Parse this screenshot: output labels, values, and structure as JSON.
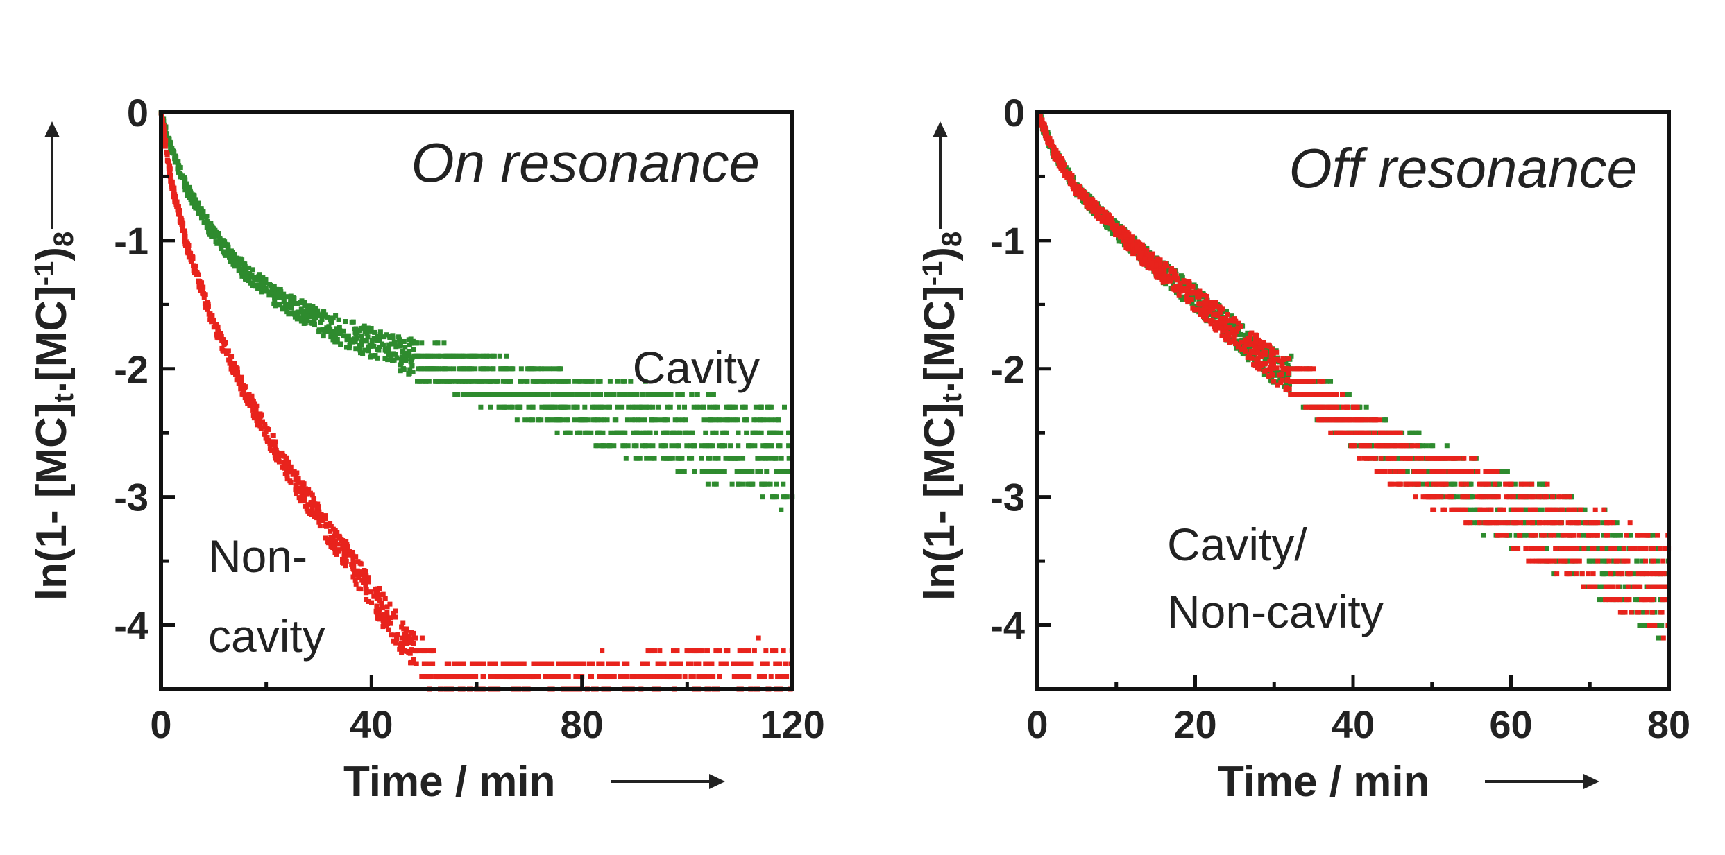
{
  "colors": {
    "cavity": "#2e8b2e",
    "noncavity": "#e8231c",
    "axes": "#111111"
  },
  "chart_data": [
    {
      "type": "scatter",
      "title": "On resonance",
      "xlabel": "Time / min",
      "ylabel_parts": {
        "a": "ln(1- [MC]",
        "sub1": "t",
        "b": ".[MC]",
        "sup1": "-1",
        "b2": ")",
        "sub2": "8"
      },
      "xlim": [
        0,
        120
      ],
      "ylim": [
        -4.5,
        0
      ],
      "xticks": [
        "0",
        "40",
        "80",
        "120"
      ],
      "yticks": [
        "0",
        "-1",
        "-2",
        "-3",
        "-4"
      ],
      "annotations": [
        {
          "id": "cavity",
          "lines": [
            "Cavity"
          ]
        },
        {
          "id": "noncavity",
          "lines": [
            "Non-",
            "cavity"
          ]
        }
      ],
      "series": [
        {
          "color_key": "cavity",
          "curve": [
            [
              0,
              0
            ],
            [
              2,
              -0.3
            ],
            [
              5,
              -0.6
            ],
            [
              10,
              -0.95
            ],
            [
              15,
              -1.2
            ],
            [
              20,
              -1.38
            ],
            [
              25,
              -1.52
            ],
            [
              30,
              -1.63
            ],
            [
              35,
              -1.72
            ],
            [
              40,
              -1.8
            ],
            [
              50,
              -1.95
            ],
            [
              60,
              -2.07
            ],
            [
              70,
              -2.18
            ],
            [
              80,
              -2.3
            ],
            [
              90,
              -2.4
            ],
            [
              100,
              -2.5
            ],
            [
              110,
              -2.6
            ],
            [
              120,
              -2.7
            ]
          ]
        },
        {
          "color_key": "noncavity",
          "curve": [
            [
              0,
              0
            ],
            [
              2,
              -0.55
            ],
            [
              5,
              -1.05
            ],
            [
              10,
              -1.65
            ],
            [
              15,
              -2.1
            ],
            [
              20,
              -2.5
            ],
            [
              25,
              -2.85
            ],
            [
              30,
              -3.15
            ],
            [
              35,
              -3.45
            ],
            [
              40,
              -3.75
            ],
            [
              45,
              -4.05
            ],
            [
              50,
              -4.3
            ],
            [
              55,
              -4.5
            ],
            [
              120,
              -4.5
            ]
          ]
        }
      ]
    },
    {
      "type": "scatter",
      "title": "Off resonance",
      "xlabel": "Time / min",
      "ylabel_parts": {
        "a": "ln(1- [MC]",
        "sub1": "t",
        "b": ".[MC]",
        "sup1": "-1",
        "b2": ")",
        "sub2": "8"
      },
      "xlim": [
        0,
        80
      ],
      "ylim": [
        -4.5,
        0
      ],
      "xticks": [
        "0",
        "20",
        "40",
        "60",
        "80"
      ],
      "yticks": [
        "0",
        "-1",
        "-2",
        "-3",
        "-4"
      ],
      "annotations": [
        {
          "id": "both",
          "lines": [
            "Cavity/",
            "Non-cavity"
          ]
        }
      ],
      "series": [
        {
          "color_key": "cavity",
          "curve": [
            [
              0,
              0
            ],
            [
              2,
              -0.3
            ],
            [
              5,
              -0.6
            ],
            [
              10,
              -0.92
            ],
            [
              15,
              -1.2
            ],
            [
              20,
              -1.45
            ],
            [
              25,
              -1.72
            ],
            [
              30,
              -1.98
            ],
            [
              35,
              -2.2
            ],
            [
              40,
              -2.42
            ],
            [
              45,
              -2.62
            ],
            [
              50,
              -2.8
            ],
            [
              55,
              -2.95
            ],
            [
              60,
              -3.1
            ],
            [
              65,
              -3.25
            ],
            [
              70,
              -3.4
            ],
            [
              75,
              -3.6
            ],
            [
              80,
              -3.8
            ]
          ]
        },
        {
          "color_key": "noncavity",
          "curve": [
            [
              0,
              0
            ],
            [
              2,
              -0.3
            ],
            [
              5,
              -0.6
            ],
            [
              10,
              -0.92
            ],
            [
              15,
              -1.2
            ],
            [
              20,
              -1.45
            ],
            [
              25,
              -1.72
            ],
            [
              30,
              -1.98
            ],
            [
              35,
              -2.2
            ],
            [
              40,
              -2.45
            ],
            [
              45,
              -2.68
            ],
            [
              50,
              -2.85
            ],
            [
              55,
              -2.98
            ],
            [
              60,
              -3.1
            ],
            [
              65,
              -3.25
            ],
            [
              70,
              -3.4
            ],
            [
              75,
              -3.55
            ],
            [
              80,
              -3.7
            ]
          ]
        }
      ]
    }
  ]
}
